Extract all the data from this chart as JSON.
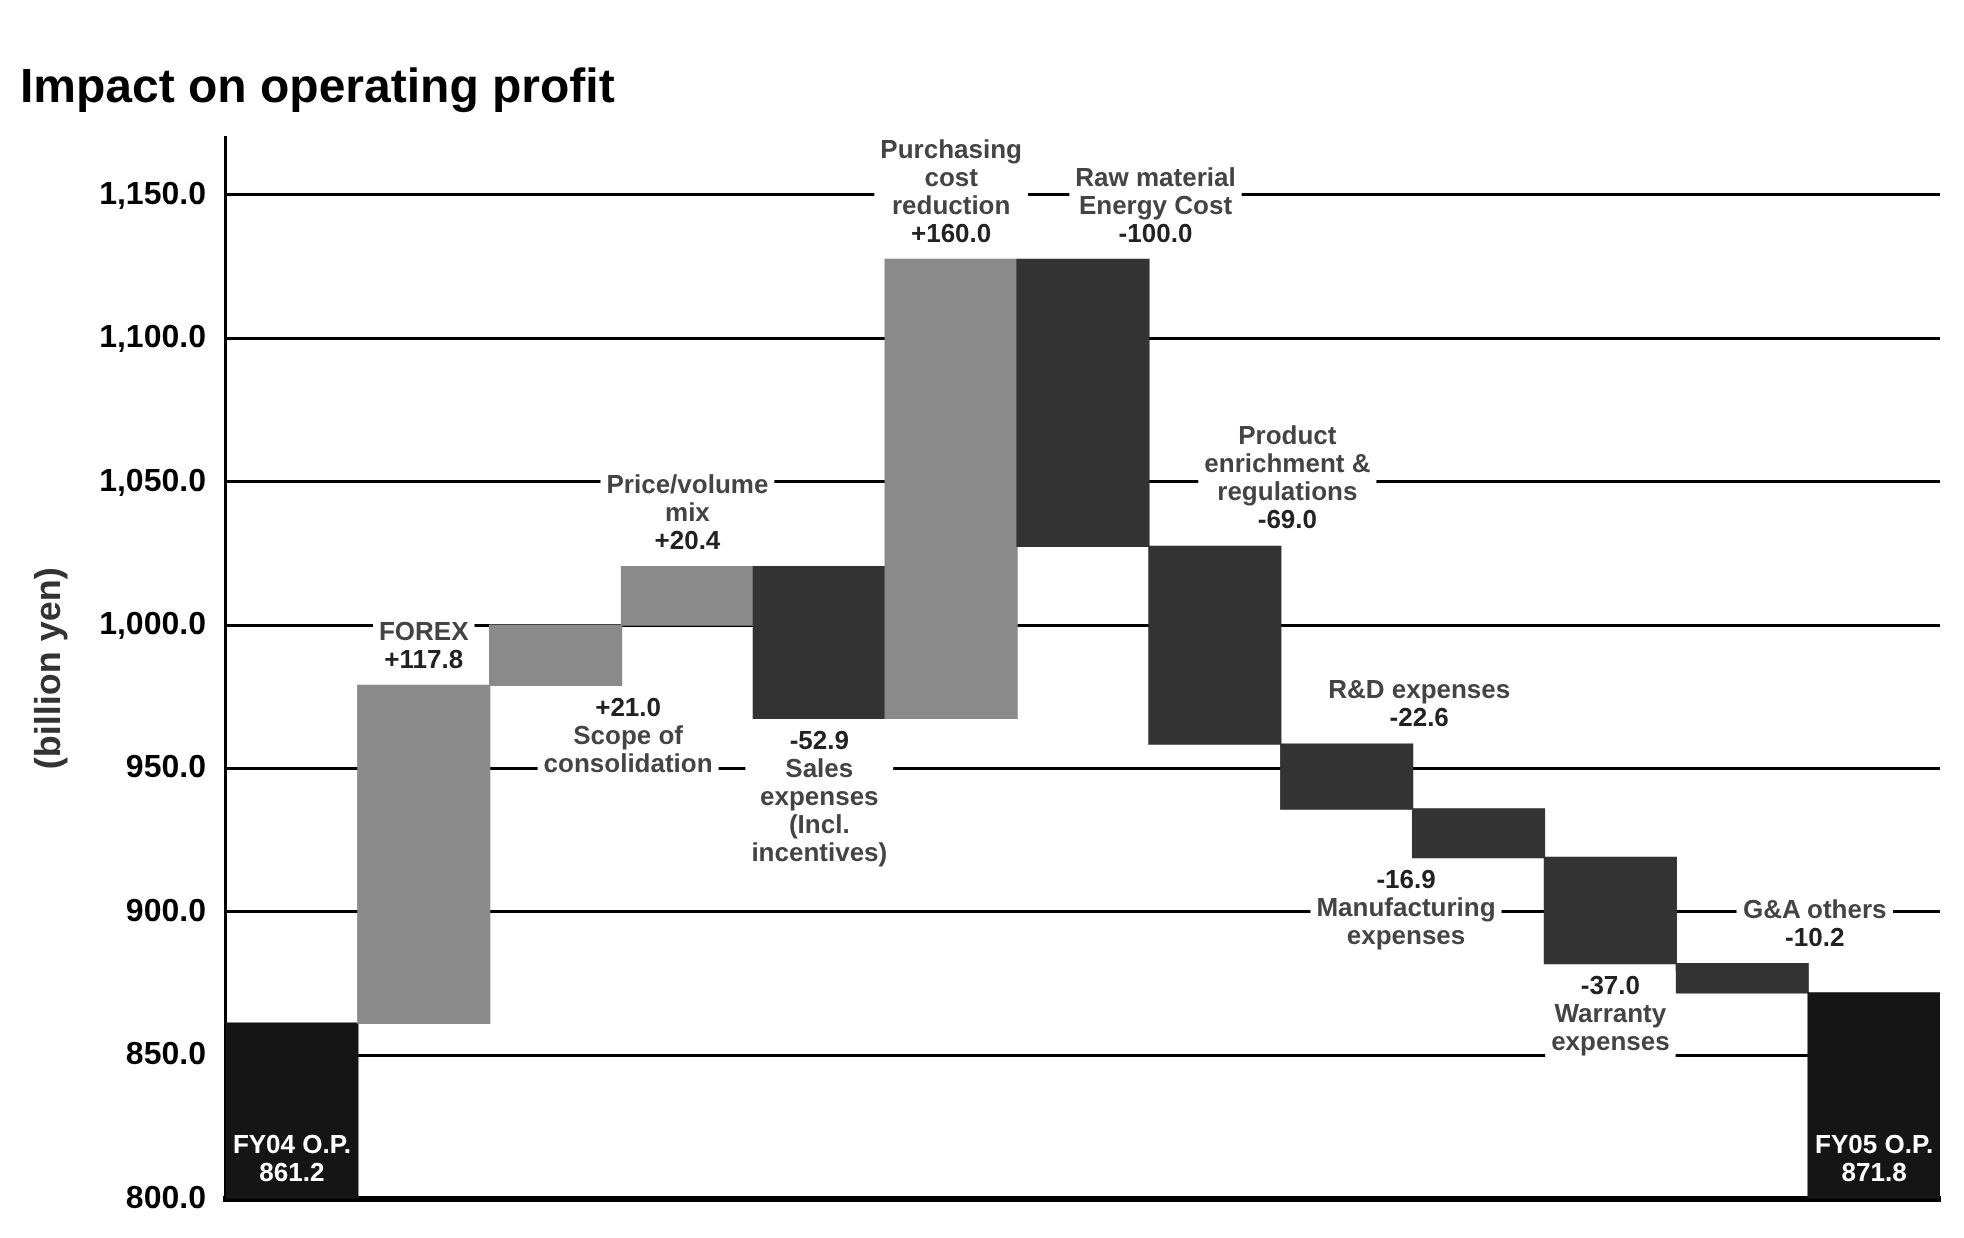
{
  "chart_data": {
    "type": "bar",
    "title": "Impact on operating profit",
    "ylabel": "(billion yen)",
    "categories": [
      null,
      null,
      null,
      null,
      null,
      null,
      null,
      null,
      null,
      null,
      null,
      null,
      null
    ],
    "annotations": [
      "FY04 O.P.",
      "FOREX",
      "Scope of consolidation",
      "Price/volume mix",
      "Sales expenses (Incl. incentives)",
      "Purchasing cost reduction",
      "Raw material Energy Cost",
      "Product enrichment & regulations",
      "R&D expenses",
      "Manufacturing expenses",
      "Warranty expenses",
      "G&A others",
      "FY05 O.P."
    ],
    "values": [
      861.2,
      117.8,
      21.0,
      20.4,
      -52.9,
      160.0,
      -100.0,
      -69.0,
      -22.6,
      -16.9,
      -37.0,
      -10.2,
      871.8
    ],
    "base": [
      null,
      861.2,
      979.0,
      1000.0,
      1020.4,
      967.5,
      1127.5,
      1027.5,
      958.5,
      935.9,
      919.0,
      882.0,
      null
    ],
    "value_labels": [
      "861.2",
      "+117.8",
      "+21.0",
      "+20.4",
      "-52.9",
      "+160.0",
      "-100.0",
      "-69.0",
      "-22.6",
      "-16.9",
      "-37.0",
      "-10.2",
      "871.8"
    ],
    "colors": [
      "#151515",
      "#8a8a8a",
      "#8a8a8a",
      "#8a8a8a",
      "#333333",
      "#8a8a8a",
      "#333333",
      "#333333",
      "#333333",
      "#333333",
      "#333333",
      "#333333",
      "#151515"
    ],
    "ylim": [
      800,
      1170
    ],
    "yticks": [
      {
        "value": 800,
        "label": "800.0"
      },
      {
        "value": 850,
        "label": "850.0"
      },
      {
        "value": 900,
        "label": "900.0"
      },
      {
        "value": 950,
        "label": "950.0"
      },
      {
        "value": 1000,
        "label": "1,000.0"
      },
      {
        "value": 1050,
        "label": "1,050.0"
      },
      {
        "value": 1100,
        "label": "1,100.0"
      },
      {
        "value": 1150,
        "label": "1,150.0"
      }
    ],
    "grid": "y",
    "legend": false
  }
}
